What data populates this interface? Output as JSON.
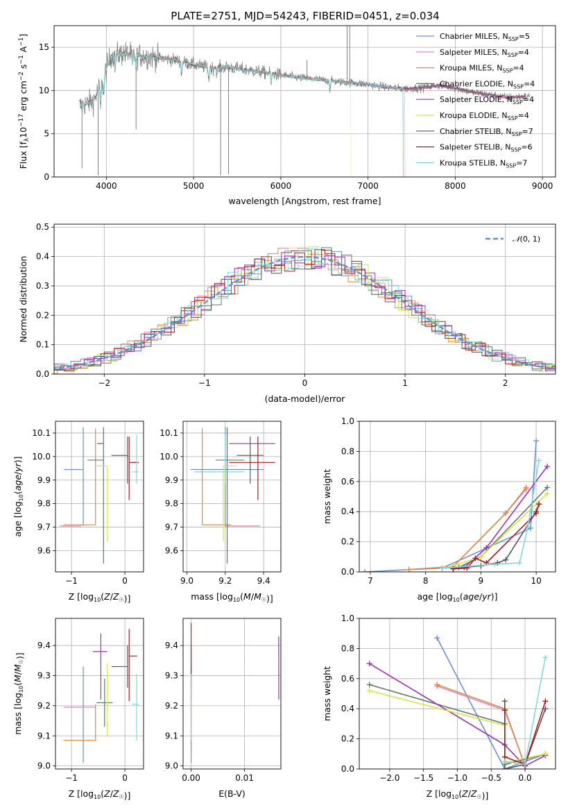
{
  "figure": {
    "title": "PLATE=2751, MJD=54243, FIBERID=0451, z=0.034"
  },
  "models": [
    {
      "name": "Chabrier MILES",
      "nssp": "5",
      "color": "#6a8fd9"
    },
    {
      "name": "Salpeter MILES",
      "nssp": "4",
      "color": "#e07fd2"
    },
    {
      "name": "Kroupa MILES",
      "nssp": "4",
      "color": "#d98b3a"
    },
    {
      "name": "Chabrier ELODIE",
      "nssp": "4",
      "color": "#5e7a64"
    },
    {
      "name": "Salpeter ELODIE",
      "nssp": "4",
      "color": "#9b30b8"
    },
    {
      "name": "Kroupa ELODIE",
      "nssp": "4",
      "color": "#d6e640"
    },
    {
      "name": "Chabrier STELIB",
      "nssp": "7",
      "color": "#555555"
    },
    {
      "name": "Salpeter STELIB",
      "nssp": "6",
      "color": "#b01a1a"
    },
    {
      "name": "Kroupa STELIB",
      "nssp": "7",
      "color": "#7fd9d9"
    }
  ],
  "chart_data": [
    {
      "id": "spectrum",
      "type": "line",
      "xlabel": "wavelength [Angstrom, rest frame]",
      "ylabel": "Flux [f_λ10^-17 erg cm^-2 s^-1 A^-1]",
      "xlim": [
        3400,
        9150
      ],
      "ylim": [
        0,
        17.5
      ],
      "xticks": [
        4000,
        5000,
        6000,
        7000,
        8000,
        9000
      ],
      "yticks": [
        0,
        5,
        10,
        15
      ],
      "data_color": "#808080",
      "continuum": [
        [
          3700,
          8.2
        ],
        [
          3850,
          8.8
        ],
        [
          3950,
          11.0
        ],
        [
          4050,
          14.0
        ],
        [
          4200,
          14.3
        ],
        [
          4400,
          14.0
        ],
        [
          4600,
          13.8
        ],
        [
          4800,
          13.5
        ],
        [
          5000,
          13.0
        ],
        [
          5200,
          12.6
        ],
        [
          5400,
          12.7
        ],
        [
          5600,
          12.4
        ],
        [
          5800,
          12.1
        ],
        [
          6000,
          11.8
        ],
        [
          6200,
          11.5
        ],
        [
          6400,
          11.3
        ],
        [
          6600,
          11.1
        ],
        [
          6800,
          10.9
        ],
        [
          7000,
          10.7
        ],
        [
          7200,
          10.4
        ],
        [
          7400,
          10.2
        ],
        [
          7600,
          10.3
        ],
        [
          7800,
          10.6
        ],
        [
          8000,
          10.3
        ],
        [
          8200,
          9.8
        ],
        [
          8400,
          9.5
        ],
        [
          8600,
          9.2
        ],
        [
          8800,
          9.3
        ]
      ],
      "model_range": [
        [
          3700,
          8800
        ],
        [
          3700,
          8800
        ],
        [
          3700,
          7420
        ],
        [
          3700,
          8800
        ],
        [
          3700,
          8800
        ],
        [
          3700,
          6800
        ],
        [
          3700,
          8800
        ],
        [
          3700,
          8800
        ],
        [
          3700,
          7400
        ]
      ],
      "data_spikes": [
        [
          3720,
          1.0
        ],
        [
          3905,
          0.2
        ],
        [
          4340,
          5.5
        ],
        [
          5310,
          0.2
        ],
        [
          5400,
          0.3
        ],
        [
          6760,
          17.5
        ],
        [
          6790,
          17.5
        ],
        [
          6300,
          13.5
        ]
      ]
    },
    {
      "id": "residuals",
      "type": "histogram",
      "xlabel": "(data-model)/error",
      "ylabel": "Normed distribution",
      "xlim": [
        -2.5,
        2.5
      ],
      "ylim": [
        0,
        0.51
      ],
      "xticks": [
        -2,
        -1,
        0,
        1,
        2
      ],
      "yticks": [
        0.0,
        0.1,
        0.2,
        0.3,
        0.4,
        0.5
      ],
      "legend": "N(0,1)",
      "bin_width": 0.1
    },
    {
      "id": "age-vs-Z",
      "type": "errorbar",
      "xlabel": "Z [log10(Z/Z☉)]",
      "ylabel": "age  [log10(age/yr)]",
      "xlim": [
        -1.3,
        0.35
      ],
      "ylim": [
        9.51,
        10.15
      ],
      "xticks": [
        -1,
        0
      ],
      "yticks": [
        9.6,
        9.7,
        9.8,
        9.9,
        10.0,
        10.1
      ],
      "points": [
        {
          "x": -0.78,
          "xe": [
            0.36,
            0.0
          ],
          "y": 9.945,
          "ye": [
            0.24,
            0.18
          ]
        },
        {
          "x": -0.82,
          "xe": [
            0.4,
            0.0
          ],
          "y": 9.705,
          "ye": [
            0.0,
            0.0
          ]
        },
        {
          "x": -0.55,
          "xe": [
            0.6,
            0.0
          ],
          "y": 9.71,
          "ye": [
            0.0,
            0.41
          ]
        },
        {
          "x": -0.4,
          "xe": [
            0.3,
            0.0
          ],
          "y": 9.985,
          "ye": [
            0.44,
            0.14
          ]
        },
        {
          "x": -0.4,
          "xe": [
            0.12,
            0.0
          ],
          "y": 10.055,
          "ye": [
            0.0,
            0.0
          ]
        },
        {
          "x": -0.33,
          "xe": [
            0.22,
            0.0
          ],
          "y": 9.96,
          "ye": [
            0.32,
            0.0
          ]
        },
        {
          "x": 0.05,
          "xe": [
            0.3,
            0.0
          ],
          "y": 10.005,
          "ye": [
            0.12,
            0.08
          ]
        },
        {
          "x": 0.08,
          "xe": [
            0.0,
            0.18
          ],
          "y": 9.975,
          "ye": [
            0.16,
            0.11
          ]
        },
        {
          "x": 0.22,
          "xe": [
            0.08,
            0.04
          ],
          "y": 9.935,
          "ye": [
            0.05,
            0.16
          ]
        }
      ]
    },
    {
      "id": "age-vs-mass",
      "type": "errorbar",
      "xlabel": "mass [log10(M/M☉)]",
      "ylabel": "",
      "xlim": [
        8.98,
        9.49
      ],
      "ylim": [
        9.51,
        10.15
      ],
      "xticks": [
        9.0,
        9.2,
        9.4
      ],
      "yticks": [
        9.6,
        9.7,
        9.8,
        9.9,
        10.0,
        10.1
      ],
      "points": [
        {
          "x": 9.2,
          "xe": [
            0.18,
            0.2
          ],
          "y": 9.945,
          "ye": [
            0.24,
            0.18
          ]
        },
        {
          "x": 9.38,
          "xe": [
            0.18,
            0.0
          ],
          "y": 9.705,
          "ye": [
            0.0,
            0.0
          ]
        },
        {
          "x": 9.08,
          "xe": [
            0.0,
            0.15
          ],
          "y": 9.71,
          "ye": [
            0.0,
            0.41
          ]
        },
        {
          "x": 9.21,
          "xe": [
            0.06,
            0.09
          ],
          "y": 9.985,
          "ye": [
            0.44,
            0.14
          ]
        },
        {
          "x": 9.38,
          "xe": [
            0.16,
            0.08
          ],
          "y": 10.055,
          "ye": [
            0.0,
            0.0
          ]
        },
        {
          "x": 9.19,
          "xe": [
            0.0,
            0.07
          ],
          "y": 9.96,
          "ye": [
            0.32,
            0.0
          ]
        },
        {
          "x": 9.33,
          "xe": [
            0.07,
            0.07
          ],
          "y": 10.005,
          "ye": [
            0.12,
            0.08
          ]
        },
        {
          "x": 9.37,
          "xe": [
            0.15,
            0.09
          ],
          "y": 9.975,
          "ye": [
            0.16,
            0.11
          ]
        },
        {
          "x": 9.2,
          "xe": [
            0.16,
            0.1
          ],
          "y": 9.935,
          "ye": [
            0.05,
            0.16
          ]
        }
      ]
    },
    {
      "id": "weight-vs-age",
      "type": "line",
      "xlabel": "age  [log10(age/yr)]",
      "ylabel": "mass weight",
      "xlim": [
        6.8,
        10.35
      ],
      "ylim": [
        0,
        1.0
      ],
      "xticks": [
        7,
        8,
        9,
        10
      ],
      "yticks": [
        0.0,
        0.2,
        0.4,
        0.6,
        0.8,
        1.0
      ],
      "series": [
        {
          "x": [
            6.9,
            7.7,
            8.3,
            9.9,
            10.0
          ],
          "y": [
            0.0,
            0.015,
            0.025,
            0.29,
            0.87
          ]
        },
        {
          "x": [
            7.7,
            8.5,
            9.45,
            9.82
          ],
          "y": [
            0.015,
            0.035,
            0.39,
            0.55
          ]
        },
        {
          "x": [
            7.7,
            8.5,
            9.45,
            9.82
          ],
          "y": [
            0.015,
            0.035,
            0.39,
            0.56
          ]
        },
        {
          "x": [
            8.3,
            8.6,
            9.0,
            10.2
          ],
          "y": [
            0.025,
            0.03,
            0.1,
            0.56
          ]
        },
        {
          "x": [
            8.3,
            8.7,
            9.1,
            10.2
          ],
          "y": [
            0.025,
            0.03,
            0.16,
            0.7
          ]
        },
        {
          "x": [
            8.3,
            8.5,
            9.0,
            10.2
          ],
          "y": [
            0.025,
            0.04,
            0.1,
            0.52
          ]
        },
        {
          "x": [
            8.5,
            8.7,
            9.0,
            9.3,
            9.45,
            10.0,
            10.05
          ],
          "y": [
            0.02,
            0.03,
            0.04,
            0.06,
            0.08,
            0.4,
            0.45
          ]
        },
        {
          "x": [
            8.5,
            8.75,
            8.9,
            9.1,
            10.0,
            10.05
          ],
          "y": [
            0.02,
            0.025,
            0.09,
            0.06,
            0.39,
            0.45
          ]
        },
        {
          "x": [
            8.3,
            9.25,
            9.7,
            9.85,
            10.05
          ],
          "y": [
            0.025,
            0.05,
            0.06,
            0.3,
            0.74
          ]
        }
      ]
    },
    {
      "id": "mass-vs-Z",
      "type": "errorbar",
      "xlabel": "Z [log10(Z/Z☉)]",
      "ylabel": "mass [log10(M/M☉)]",
      "xlim": [
        -1.3,
        0.35
      ],
      "ylim": [
        8.99,
        9.49
      ],
      "xticks": [
        -1,
        0
      ],
      "yticks": [
        9.0,
        9.1,
        9.2,
        9.3,
        9.4
      ],
      "points": [
        {
          "x": -0.78,
          "xe": [
            0.0,
            0.0
          ],
          "y": 9.2,
          "ye": [
            0.19,
            0.13
          ]
        },
        {
          "x": -0.55,
          "xe": [
            0.6,
            0.0
          ],
          "y": 9.195,
          "ye": [
            0.0,
            0.0
          ]
        },
        {
          "x": -0.55,
          "xe": [
            0.6,
            0.0
          ],
          "y": 9.085,
          "ye": [
            0.0,
            0.12
          ]
        },
        {
          "x": -0.38,
          "xe": [
            0.15,
            0.15
          ],
          "y": 9.21,
          "ye": [
            0.08,
            0.08
          ]
        },
        {
          "x": -0.45,
          "xe": [
            0.15,
            0.12
          ],
          "y": 9.38,
          "ye": [
            0.16,
            0.06
          ]
        },
        {
          "x": -0.33,
          "xe": [
            0.0,
            0.0
          ],
          "y": 9.24,
          "ye": [
            0.14,
            0.1
          ]
        },
        {
          "x": 0.05,
          "xe": [
            0.3,
            0.0
          ],
          "y": 9.33,
          "ye": [
            0.07,
            0.07
          ]
        },
        {
          "x": 0.08,
          "xe": [
            0.0,
            0.15
          ],
          "y": 9.365,
          "ye": [
            0.15,
            0.09
          ]
        },
        {
          "x": 0.22,
          "xe": [
            0.08,
            0.04
          ],
          "y": 9.205,
          "ye": [
            0.12,
            0.1
          ]
        }
      ]
    },
    {
      "id": "mass-vs-EBV",
      "type": "errorbar",
      "xlabel": "E(B-V)",
      "ylabel": "",
      "xlim": [
        -0.0015,
        0.0168
      ],
      "ylim": [
        8.99,
        9.49
      ],
      "xticks": [
        0.0,
        0.01
      ],
      "xticklabels": [
        "0.00",
        "0.01"
      ],
      "yticks": [
        9.0,
        9.1,
        9.2,
        9.3,
        9.4
      ],
      "points": [
        {
          "x": 0.0,
          "xe": [
            0.0,
            0.0
          ],
          "y": 9.2,
          "ye": [
            0.19,
            0.13
          ]
        },
        {
          "x": 0.0,
          "xe": [
            0.0,
            0.0
          ],
          "y": 9.195,
          "ye": [
            0.15,
            0.12
          ]
        },
        {
          "x": 0.0,
          "xe": [
            0.0,
            0.0
          ],
          "y": 9.085,
          "ye": [
            0.06,
            0.12
          ]
        },
        {
          "x": 0.0,
          "xe": [
            0.0,
            0.0
          ],
          "y": 9.21,
          "ye": [
            0.08,
            0.08
          ]
        },
        {
          "x": 0.0164,
          "xe": [
            0.0,
            0.0
          ],
          "y": 9.33,
          "ye": [
            0.11,
            0.1
          ]
        },
        {
          "x": 0.0,
          "xe": [
            0.0,
            0.0
          ],
          "y": 9.24,
          "ye": [
            0.14,
            0.1
          ]
        },
        {
          "x": 0.0,
          "xe": [
            0.0,
            0.0
          ],
          "y": 9.33,
          "ye": [
            0.07,
            0.07
          ]
        },
        {
          "x": 0.0,
          "xe": [
            0.0,
            0.0
          ],
          "y": 9.365,
          "ye": [
            0.15,
            0.11
          ]
        },
        {
          "x": 0.0,
          "xe": [
            0.0,
            0.0
          ],
          "y": 9.205,
          "ye": [
            0.12,
            0.1
          ]
        }
      ]
    },
    {
      "id": "weight-vs-Z",
      "type": "line",
      "xlabel": "Z [log10(Z/Z☉)]",
      "ylabel": "mass weight",
      "xlim": [
        -2.45,
        0.45
      ],
      "ylim": [
        0,
        1.0
      ],
      "xticks": [
        -2.0,
        -1.5,
        -1.0,
        -0.5,
        0.0
      ],
      "xticklabels": [
        "−2.0",
        "−1.5",
        "−1.0",
        "−0.5",
        "0.0"
      ],
      "yticks": [
        0.0,
        0.2,
        0.4,
        0.6,
        0.8,
        1.0
      ],
      "series": [
        {
          "x": [
            -1.3,
            -0.3,
            0.3
          ],
          "y": [
            0.87,
            0.0,
            0.1
          ]
        },
        {
          "x": [
            -1.3,
            -0.3,
            0.0
          ],
          "y": [
            0.55,
            0.39,
            0.02
          ]
        },
        {
          "x": [
            -1.3,
            -0.3,
            0.0
          ],
          "y": [
            0.56,
            0.4,
            0.02
          ]
        },
        {
          "x": [
            -2.3,
            -0.3,
            -0.3,
            0.3
          ],
          "y": [
            0.56,
            0.3,
            0.03,
            0.1
          ]
        },
        {
          "x": [
            -2.3,
            -0.3,
            0.0,
            0.3
          ],
          "y": [
            0.7,
            0.16,
            0.02,
            0.09
          ]
        },
        {
          "x": [
            -2.3,
            -0.3,
            -0.3,
            0.3
          ],
          "y": [
            0.52,
            0.29,
            0.04,
            0.1
          ]
        },
        {
          "x": [
            -0.3,
            -0.3,
            0.0,
            0.3
          ],
          "y": [
            0.45,
            0.0,
            0.03,
            0.4
          ]
        },
        {
          "x": [
            -0.3,
            -0.3,
            0.0,
            0.3
          ],
          "y": [
            0.39,
            0.08,
            0.03,
            0.45
          ]
        },
        {
          "x": [
            -0.3,
            0.0,
            0.3
          ],
          "y": [
            0.05,
            0.03,
            0.74
          ]
        }
      ]
    }
  ]
}
